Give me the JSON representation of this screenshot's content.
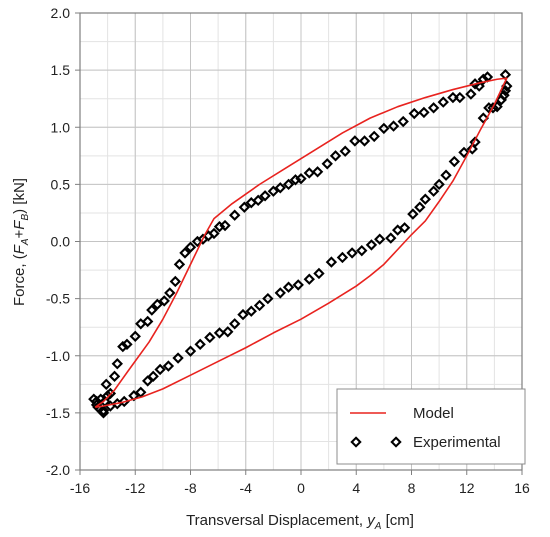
{
  "chart_data": {
    "type": "scatter",
    "xlabel": {
      "main": "Transversal Displacement, ",
      "var": "y",
      "sub": "A",
      "unit": " [cm]"
    },
    "ylabel": {
      "main": "Force, ",
      "open": "(",
      "var1": "F",
      "sub1": "A",
      "plus": "+",
      "var2": "F",
      "sub2": "B",
      "close": ")",
      "unit": " [kN]"
    },
    "xlim": [
      -16,
      16
    ],
    "ylim": [
      -2.0,
      2.0
    ],
    "xticks": [
      -16,
      -12,
      -8,
      -4,
      0,
      4,
      8,
      12,
      16
    ],
    "yticks": [
      -2.0,
      -1.5,
      -1.0,
      -0.5,
      0.0,
      0.5,
      1.0,
      1.5,
      2.0
    ],
    "xtick_labels": [
      "-16",
      "-12",
      "-8",
      "-4",
      "0",
      "4",
      "8",
      "12",
      "16"
    ],
    "ytick_labels": [
      "-2.0",
      "-1.5",
      "-1.0",
      "-0.5",
      "0.0",
      "0.5",
      "1.0",
      "1.5",
      "2.0"
    ],
    "grid": true,
    "legend_position": "bottom-right",
    "series": [
      {
        "name": "Model",
        "kind": "line",
        "color": "#e8231f",
        "points": [
          [
            -14.9,
            -1.45
          ],
          [
            -14.3,
            -1.4
          ],
          [
            -13.5,
            -1.3
          ],
          [
            -12.5,
            -1.13
          ],
          [
            -11.0,
            -0.88
          ],
          [
            -10.0,
            -0.68
          ],
          [
            -9.0,
            -0.45
          ],
          [
            -8.0,
            -0.2
          ],
          [
            -7.0,
            0.05
          ],
          [
            -6.3,
            0.2
          ],
          [
            -5.0,
            0.33
          ],
          [
            -3.0,
            0.5
          ],
          [
            -1.0,
            0.65
          ],
          [
            1.0,
            0.8
          ],
          [
            3.0,
            0.95
          ],
          [
            5.0,
            1.08
          ],
          [
            7.0,
            1.18
          ],
          [
            9.0,
            1.26
          ],
          [
            11.0,
            1.33
          ],
          [
            13.0,
            1.39
          ],
          [
            14.2,
            1.42
          ],
          [
            14.9,
            1.43
          ],
          [
            14.9,
            1.43
          ],
          [
            14.7,
            1.38
          ],
          [
            14.0,
            1.2
          ],
          [
            13.0,
            0.98
          ],
          [
            12.0,
            0.75
          ],
          [
            11.0,
            0.53
          ],
          [
            10.0,
            0.35
          ],
          [
            9.0,
            0.18
          ],
          [
            8.0,
            0.06
          ],
          [
            7.0,
            -0.07
          ],
          [
            6.0,
            -0.2
          ],
          [
            5.0,
            -0.3
          ],
          [
            4.0,
            -0.39
          ],
          [
            2.0,
            -0.54
          ],
          [
            0.0,
            -0.68
          ],
          [
            -2.0,
            -0.8
          ],
          [
            -4.0,
            -0.93
          ],
          [
            -6.0,
            -1.05
          ],
          [
            -8.0,
            -1.17
          ],
          [
            -10.0,
            -1.29
          ],
          [
            -11.5,
            -1.36
          ],
          [
            -13.0,
            -1.41
          ],
          [
            -14.3,
            -1.44
          ],
          [
            -14.9,
            -1.45
          ]
        ]
      },
      {
        "name": "Experimental",
        "kind": "marker",
        "color": "#000000",
        "points": [
          [
            -15.0,
            -1.38
          ],
          [
            -14.7,
            -1.45
          ],
          [
            -14.5,
            -1.38
          ],
          [
            -14.3,
            -1.5
          ],
          [
            -14.2,
            -1.4
          ],
          [
            -14.0,
            -1.35
          ],
          [
            -13.8,
            -1.33
          ],
          [
            -14.1,
            -1.25
          ],
          [
            -13.5,
            -1.18
          ],
          [
            -13.3,
            -1.07
          ],
          [
            -12.9,
            -0.92
          ],
          [
            -12.6,
            -0.9
          ],
          [
            -12.0,
            -0.83
          ],
          [
            -11.6,
            -0.72
          ],
          [
            -11.1,
            -0.7
          ],
          [
            -10.8,
            -0.6
          ],
          [
            -10.4,
            -0.55
          ],
          [
            -9.9,
            -0.52
          ],
          [
            -9.5,
            -0.45
          ],
          [
            -9.1,
            -0.35
          ],
          [
            -8.8,
            -0.2
          ],
          [
            -8.4,
            -0.1
          ],
          [
            -8.0,
            -0.05
          ],
          [
            -7.5,
            0.0
          ],
          [
            -7.1,
            0.02
          ],
          [
            -6.7,
            0.05
          ],
          [
            -6.3,
            0.07
          ],
          [
            -5.9,
            0.13
          ],
          [
            -5.5,
            0.14
          ],
          [
            -4.8,
            0.23
          ],
          [
            -4.1,
            0.3
          ],
          [
            -3.6,
            0.34
          ],
          [
            -3.1,
            0.36
          ],
          [
            -2.6,
            0.4
          ],
          [
            -2.0,
            0.44
          ],
          [
            -1.5,
            0.47
          ],
          [
            -0.9,
            0.5
          ],
          [
            -0.4,
            0.54
          ],
          [
            0.0,
            0.55
          ],
          [
            0.6,
            0.6
          ],
          [
            1.2,
            0.61
          ],
          [
            1.9,
            0.68
          ],
          [
            2.5,
            0.75
          ],
          [
            3.2,
            0.79
          ],
          [
            3.9,
            0.88
          ],
          [
            4.6,
            0.88
          ],
          [
            5.3,
            0.92
          ],
          [
            6.0,
            0.99
          ],
          [
            6.7,
            1.01
          ],
          [
            7.4,
            1.05
          ],
          [
            8.2,
            1.12
          ],
          [
            8.9,
            1.13
          ],
          [
            9.6,
            1.17
          ],
          [
            10.3,
            1.22
          ],
          [
            11.0,
            1.26
          ],
          [
            11.5,
            1.26
          ],
          [
            12.3,
            1.29
          ],
          [
            12.6,
            1.38
          ],
          [
            12.9,
            1.36
          ],
          [
            13.2,
            1.42
          ],
          [
            13.5,
            1.44
          ],
          [
            14.8,
            1.46
          ],
          [
            14.9,
            1.36
          ],
          [
            14.8,
            1.32
          ],
          [
            14.7,
            1.28
          ],
          [
            14.5,
            1.24
          ],
          [
            14.2,
            1.18
          ],
          [
            13.9,
            1.17
          ],
          [
            13.6,
            1.17
          ],
          [
            13.2,
            1.08
          ],
          [
            12.6,
            0.87
          ],
          [
            12.4,
            0.81
          ],
          [
            11.8,
            0.78
          ],
          [
            11.1,
            0.7
          ],
          [
            10.5,
            0.58
          ],
          [
            10.0,
            0.5
          ],
          [
            9.6,
            0.44
          ],
          [
            9.0,
            0.37
          ],
          [
            8.6,
            0.3
          ],
          [
            8.1,
            0.24
          ],
          [
            7.5,
            0.12
          ],
          [
            7.0,
            0.1
          ],
          [
            6.5,
            0.03
          ],
          [
            5.7,
            0.02
          ],
          [
            5.1,
            -0.03
          ],
          [
            4.4,
            -0.08
          ],
          [
            3.7,
            -0.1
          ],
          [
            3.0,
            -0.14
          ],
          [
            2.2,
            -0.18
          ],
          [
            1.3,
            -0.28
          ],
          [
            0.6,
            -0.33
          ],
          [
            -0.2,
            -0.38
          ],
          [
            -0.9,
            -0.4
          ],
          [
            -1.5,
            -0.45
          ],
          [
            -2.4,
            -0.5
          ],
          [
            -3.0,
            -0.56
          ],
          [
            -3.6,
            -0.61
          ],
          [
            -4.2,
            -0.64
          ],
          [
            -4.8,
            -0.72
          ],
          [
            -5.3,
            -0.79
          ],
          [
            -5.9,
            -0.8
          ],
          [
            -6.6,
            -0.84
          ],
          [
            -7.3,
            -0.9
          ],
          [
            -8.0,
            -0.96
          ],
          [
            -8.9,
            -1.02
          ],
          [
            -9.6,
            -1.09
          ],
          [
            -10.2,
            -1.12
          ],
          [
            -10.7,
            -1.18
          ],
          [
            -11.1,
            -1.22
          ],
          [
            -11.6,
            -1.32
          ],
          [
            -12.1,
            -1.35
          ],
          [
            -12.8,
            -1.4
          ],
          [
            -13.3,
            -1.42
          ],
          [
            -13.8,
            -1.44
          ],
          [
            -14.3,
            -1.48
          ],
          [
            -14.8,
            -1.43
          ],
          [
            -14.8,
            -1.4
          ]
        ]
      }
    ],
    "legend": [
      {
        "label": "Model",
        "kind": "line",
        "color": "#e8231f"
      },
      {
        "label": "Experimental",
        "kind": "marker",
        "color": "#000000"
      }
    ]
  }
}
